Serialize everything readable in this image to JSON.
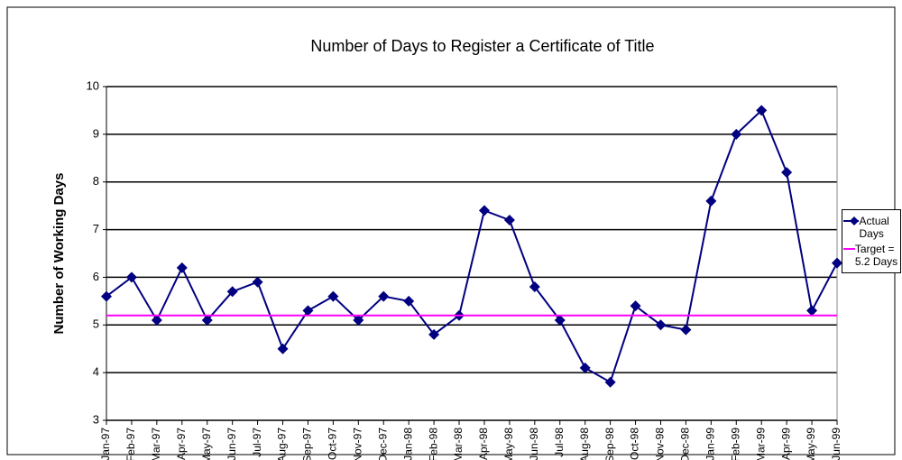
{
  "chart_data": {
    "type": "line",
    "title": "Number of Days to Register a Certificate of Title",
    "y_label": "Number of Working Days",
    "categories": [
      "Jan-97",
      "Feb-97",
      "Mar-97",
      "Apr-97",
      "May-97",
      "Jun-97",
      "Jul-97",
      "Aug-97",
      "Sep-97",
      "Oct-97",
      "Nov-97",
      "Dec-97",
      "Jan-98",
      "Feb-98",
      "Mar-98",
      "Apr-98",
      "May-98",
      "Jun-98",
      "Jul-98",
      "Aug-98",
      "Sep-98",
      "Oct-98",
      "Nov-98",
      "Dec-98",
      "Jan-99",
      "Feb-99",
      "Mar-99",
      "Apr-99",
      "May-99",
      "Jun-99"
    ],
    "series": [
      {
        "name": "Actual Days",
        "color": "#000080",
        "marker": "diamond",
        "values": [
          5.6,
          6.0,
          5.1,
          6.2,
          5.1,
          5.7,
          5.9,
          4.5,
          5.3,
          5.6,
          5.1,
          5.6,
          5.5,
          4.8,
          5.2,
          7.4,
          7.2,
          5.8,
          5.1,
          4.1,
          3.8,
          5.4,
          5.0,
          4.9,
          7.6,
          9.0,
          9.5,
          8.2,
          5.3,
          6.3
        ]
      },
      {
        "name": "Target = 5.2 Days",
        "color": "#ff00ff",
        "values": [
          5.2,
          5.2,
          5.2,
          5.2,
          5.2,
          5.2,
          5.2,
          5.2,
          5.2,
          5.2,
          5.2,
          5.2,
          5.2,
          5.2,
          5.2,
          5.2,
          5.2,
          5.2,
          5.2,
          5.2,
          5.2,
          5.2,
          5.2,
          5.2,
          5.2,
          5.2,
          5.2,
          5.2,
          5.2,
          5.2
        ]
      }
    ],
    "ylim": [
      3,
      10
    ],
    "yticks": [
      3,
      4,
      5,
      6,
      7,
      8,
      9,
      10
    ],
    "grid": true,
    "legend": "right"
  }
}
